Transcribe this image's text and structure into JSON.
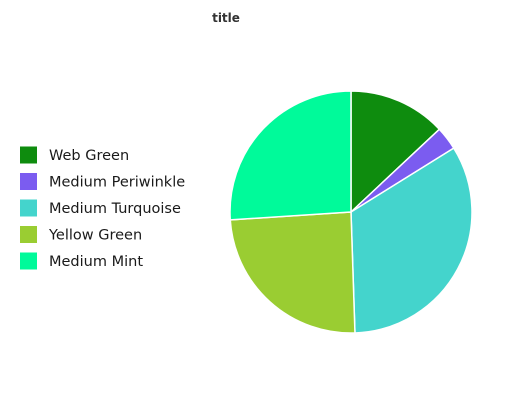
{
  "chart_data": {
    "type": "pie",
    "title": "title",
    "categories": [
      "Web Green",
      "Medium Periwinkle",
      "Medium Turquoise",
      "Yellow Green",
      "Medium Mint"
    ],
    "values": [
      12.5,
      3.0,
      32.0,
      23.5,
      25.0
    ],
    "colors": [
      "#0e8c0e",
      "#7b5cf0",
      "#44d4cc",
      "#9acd32",
      "#00fa9a"
    ],
    "legend_position": "left"
  }
}
